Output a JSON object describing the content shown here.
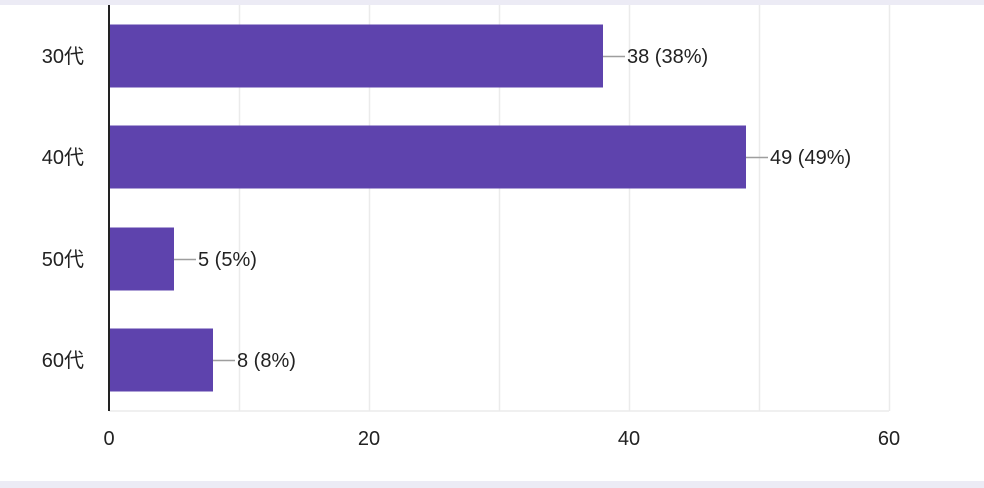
{
  "chart_data": {
    "type": "bar",
    "orientation": "horizontal",
    "categories": [
      "30代",
      "40代",
      "50代",
      "60代"
    ],
    "values": [
      38,
      49,
      5,
      8
    ],
    "data_labels": [
      "38 (38%)",
      "49 (49%)",
      "5 (5%)",
      "8 (8%)"
    ],
    "title": "",
    "xlabel": "",
    "ylabel": "",
    "xlim": [
      0,
      60
    ],
    "x_ticks": [
      "0",
      "20",
      "40",
      "60"
    ],
    "grid": true,
    "legend": "none",
    "colors": {
      "bar": "#5e43ad",
      "grid": "#ebebeb",
      "axis": "#222222",
      "leader": "#9e9e9e"
    }
  }
}
